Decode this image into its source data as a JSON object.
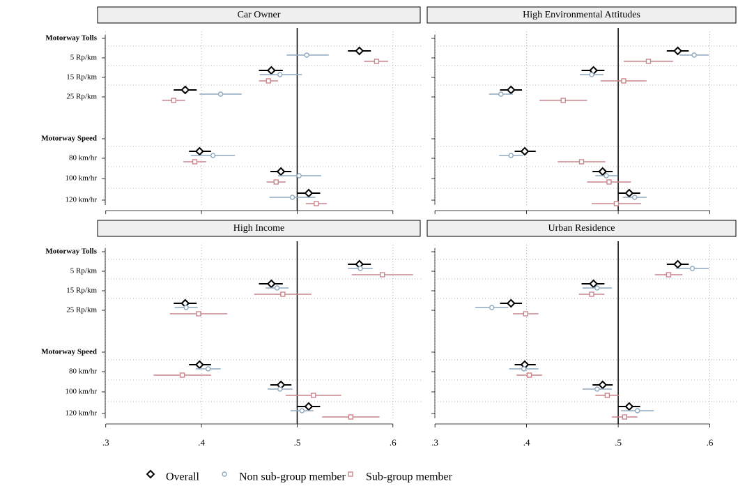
{
  "chart_data": [
    {
      "type": "coefplot",
      "title": "Car Owner",
      "categories": [
        "Motorway Tolls",
        "5 Rp/km",
        "15 Rp/km",
        "25 Rp/km",
        "Motorway Speed",
        "80 km/hr",
        "100 km/hr",
        "120 km/hr"
      ],
      "xlim": [
        0.29,
        0.63
      ],
      "xticks": [
        0.3,
        0.4,
        0.5,
        0.6
      ],
      "refline": 0.5,
      "grid": true,
      "series": [
        {
          "name": "Overall",
          "color": "#000000",
          "marker": "diamond",
          "values": [
            null,
            0.565,
            0.473,
            0.383,
            null,
            0.398,
            0.483,
            0.512
          ],
          "lower": [
            null,
            0.553,
            0.46,
            0.371,
            null,
            0.387,
            0.472,
            0.5
          ],
          "upper": [
            null,
            0.577,
            0.485,
            0.395,
            null,
            0.41,
            0.494,
            0.524
          ]
        },
        {
          "name": "Non sub-group member",
          "color": "#8fa8c0",
          "marker": "circle",
          "values": [
            null,
            0.51,
            0.482,
            0.42,
            null,
            0.412,
            0.502,
            0.495
          ],
          "lower": [
            null,
            0.489,
            0.461,
            0.398,
            null,
            0.389,
            0.48,
            0.471
          ],
          "upper": [
            null,
            0.533,
            0.505,
            0.442,
            null,
            0.435,
            0.525,
            0.519
          ]
        },
        {
          "name": "Sub-group member",
          "color": "#c9868b",
          "marker": "square",
          "values": [
            null,
            0.583,
            0.47,
            0.371,
            null,
            0.393,
            0.478,
            0.52
          ],
          "lower": [
            null,
            0.57,
            0.46,
            0.359,
            null,
            0.381,
            0.468,
            0.509
          ],
          "upper": [
            null,
            0.595,
            0.48,
            0.383,
            null,
            0.405,
            0.488,
            0.531
          ]
        }
      ]
    },
    {
      "type": "coefplot",
      "title": "High Environmental Attitudes",
      "categories": [
        null,
        null,
        null,
        null,
        null,
        null,
        null,
        null
      ],
      "xlim": [
        0.29,
        0.63
      ],
      "xticks": [
        0.3,
        0.4,
        0.5,
        0.6
      ],
      "refline": 0.5,
      "grid": true,
      "series": [
        {
          "color": "#000000",
          "marker": "diamond",
          "values": [
            null,
            0.565,
            0.473,
            0.383,
            null,
            0.398,
            0.483,
            0.512
          ],
          "lower": [
            null,
            0.553,
            0.46,
            0.371,
            null,
            0.387,
            0.472,
            0.5
          ],
          "upper": [
            null,
            0.577,
            0.485,
            0.395,
            null,
            0.41,
            0.494,
            0.524
          ]
        },
        {
          "color": "#8fa8c0",
          "marker": "circle",
          "values": [
            null,
            0.583,
            0.471,
            0.372,
            null,
            0.383,
            0.487,
            0.518
          ],
          "lower": [
            null,
            0.567,
            0.458,
            0.359,
            null,
            0.37,
            0.475,
            0.505
          ],
          "upper": [
            null,
            0.599,
            0.484,
            0.385,
            null,
            0.396,
            0.499,
            0.531
          ]
        },
        {
          "color": "#c9868b",
          "marker": "square",
          "values": [
            null,
            0.533,
            0.506,
            0.44,
            null,
            0.46,
            0.49,
            0.498
          ],
          "lower": [
            null,
            0.506,
            0.481,
            0.414,
            null,
            0.434,
            0.466,
            0.471
          ],
          "upper": [
            null,
            0.56,
            0.531,
            0.466,
            null,
            0.486,
            0.514,
            0.525
          ]
        }
      ]
    },
    {
      "type": "coefplot",
      "title": "High Income",
      "categories": [
        "Motorway Tolls",
        "5 Rp/km",
        "15 Rp/km",
        "25 Rp/km",
        "Motorway Speed",
        "80 km/hr",
        "100 km/hr",
        "120 km/hr"
      ],
      "xlim": [
        0.29,
        0.63
      ],
      "xticks": [
        {
          "value": 0.3,
          "label": ".3"
        },
        {
          "value": 0.4,
          "label": ".4"
        },
        {
          "value": 0.5,
          "label": ".5"
        },
        {
          "value": 0.6,
          "label": ".6"
        }
      ],
      "refline": 0.5,
      "grid": true,
      "series": [
        {
          "color": "#000000",
          "marker": "diamond",
          "values": [
            null,
            0.565,
            0.473,
            0.383,
            null,
            0.398,
            0.483,
            0.512
          ],
          "lower": [
            null,
            0.553,
            0.46,
            0.371,
            null,
            0.387,
            0.472,
            0.5
          ],
          "upper": [
            null,
            0.577,
            0.485,
            0.395,
            null,
            0.41,
            0.494,
            0.524
          ]
        },
        {
          "color": "#8fa8c0",
          "marker": "circle",
          "values": [
            null,
            0.566,
            0.479,
            0.384,
            null,
            0.407,
            0.482,
            0.505
          ],
          "lower": [
            null,
            0.553,
            0.467,
            0.372,
            null,
            0.394,
            0.469,
            0.493
          ],
          "upper": [
            null,
            0.579,
            0.491,
            0.396,
            null,
            0.42,
            0.495,
            0.517
          ]
        },
        {
          "color": "#c9868b",
          "marker": "square",
          "values": [
            null,
            0.589,
            0.485,
            0.397,
            null,
            0.38,
            0.517,
            0.556
          ],
          "lower": [
            null,
            0.557,
            0.455,
            0.367,
            null,
            0.35,
            0.488,
            0.526
          ],
          "upper": [
            null,
            0.621,
            0.515,
            0.427,
            null,
            0.41,
            0.546,
            0.586
          ]
        }
      ]
    },
    {
      "type": "coefplot",
      "title": "Urban Residence",
      "categories": [
        null,
        null,
        null,
        null,
        null,
        null,
        null,
        null
      ],
      "xlim": [
        0.29,
        0.63
      ],
      "xticks": [
        {
          "value": 0.3,
          "label": ".3"
        },
        {
          "value": 0.4,
          "label": ".4"
        },
        {
          "value": 0.5,
          "label": ".5"
        },
        {
          "value": 0.6,
          "label": ".6"
        }
      ],
      "refline": 0.5,
      "grid": true,
      "series": [
        {
          "color": "#000000",
          "marker": "diamond",
          "values": [
            null,
            0.565,
            0.473,
            0.383,
            null,
            0.398,
            0.483,
            0.512
          ],
          "lower": [
            null,
            0.553,
            0.46,
            0.371,
            null,
            0.387,
            0.472,
            0.5
          ],
          "upper": [
            null,
            0.577,
            0.485,
            0.395,
            null,
            0.41,
            0.494,
            0.524
          ]
        },
        {
          "color": "#8fa8c0",
          "marker": "circle",
          "values": [
            null,
            0.581,
            0.477,
            0.362,
            null,
            0.397,
            0.477,
            0.521
          ],
          "lower": [
            null,
            0.563,
            0.461,
            0.344,
            null,
            0.381,
            0.461,
            0.503
          ],
          "upper": [
            null,
            0.599,
            0.493,
            0.38,
            null,
            0.413,
            0.493,
            0.539
          ]
        },
        {
          "color": "#c9868b",
          "marker": "square",
          "values": [
            null,
            0.555,
            0.471,
            0.399,
            null,
            0.403,
            0.488,
            0.507
          ],
          "lower": [
            null,
            0.54,
            0.457,
            0.385,
            null,
            0.389,
            0.475,
            0.493
          ],
          "upper": [
            null,
            0.57,
            0.485,
            0.413,
            null,
            0.417,
            0.501,
            0.521
          ]
        }
      ]
    }
  ]
}
